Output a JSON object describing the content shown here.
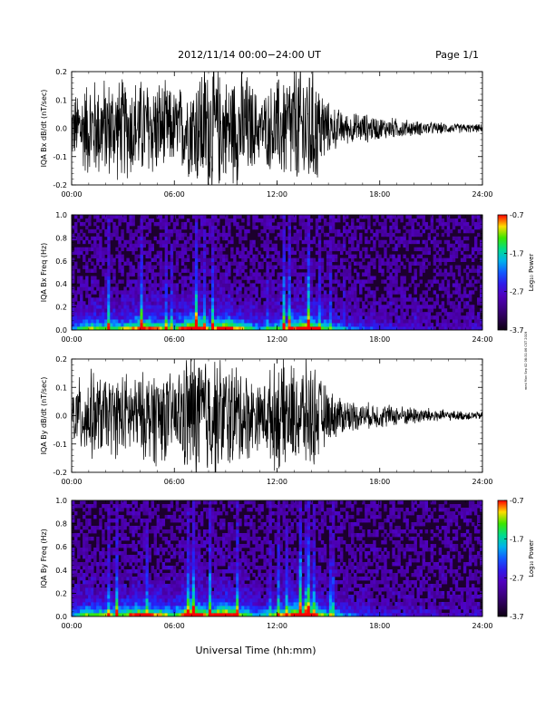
{
  "header": {
    "title": "2012/11/14  00:00−24:00 UT",
    "page": "Page 1/1"
  },
  "footer": {
    "xlabel": "Universal Time (hh:mm)",
    "side_stamp": "mml Mon Sep 02 08:31:06 CST 2019"
  },
  "chart_data": [
    {
      "type": "line",
      "ylabel": "IQA Bx dB/dt (nT/sec)",
      "ylim": [
        -0.2,
        0.2
      ],
      "yticks": [
        "-0.2",
        "-0.1",
        "0.0",
        "0.1",
        "0.2"
      ],
      "xlim": [
        0,
        24
      ],
      "xticks": [
        "00:00",
        "06:00",
        "12:00",
        "18:00",
        "24:00"
      ],
      "x_unit": "hours UT",
      "envelope": {
        "x": [
          0,
          1,
          2,
          3,
          4,
          5,
          6,
          7,
          8,
          9,
          10,
          11,
          12,
          13,
          14,
          15,
          16,
          17,
          18,
          19,
          20,
          21,
          22,
          23,
          24
        ],
        "amplitude": [
          0.12,
          0.2,
          0.2,
          0.2,
          0.2,
          0.2,
          0.15,
          0.2,
          0.3,
          0.2,
          0.25,
          0.12,
          0.2,
          0.25,
          0.28,
          0.1,
          0.06,
          0.06,
          0.045,
          0.04,
          0.03,
          0.025,
          0.02,
          0.018,
          0.015
        ]
      }
    },
    {
      "type": "heatmap",
      "ylabel": "IQA Bx Freq (Hz)",
      "ylim": [
        0.0,
        1.0
      ],
      "yticks": [
        "0.0",
        "0.2",
        "0.4",
        "0.6",
        "0.8",
        "1.0"
      ],
      "xlim": [
        0,
        24
      ],
      "xticks": [
        "00:00",
        "06:00",
        "12:00",
        "18:00",
        "24:00"
      ],
      "colorbar": {
        "label": "Log₁₀ Power",
        "range": [
          -3.7,
          -0.7
        ],
        "ticks": [
          "-0.7",
          "-1.7",
          "-2.7",
          "-3.7"
        ]
      },
      "activity": {
        "x": [
          0,
          1,
          2,
          3,
          4,
          5,
          6,
          7,
          8,
          9,
          10,
          11,
          12,
          13,
          14,
          15,
          16,
          17,
          18,
          19,
          20,
          21,
          22,
          23,
          24
        ],
        "level": [
          0.3,
          0.6,
          0.55,
          0.55,
          0.8,
          0.7,
          0.5,
          1.0,
          0.6,
          0.9,
          0.6,
          0.35,
          0.5,
          0.8,
          0.85,
          0.45,
          0.3,
          0.25,
          0.2,
          0.15,
          0.12,
          0.1,
          0.08,
          0.08,
          0.08
        ]
      }
    },
    {
      "type": "line",
      "ylabel": "IQA By dB/dt (nT/sec)",
      "ylim": [
        -0.2,
        0.2
      ],
      "yticks": [
        "-0.2",
        "-0.1",
        "0.0",
        "0.1",
        "0.2"
      ],
      "xlim": [
        0,
        24
      ],
      "xticks": [
        "00:00",
        "06:00",
        "12:00",
        "18:00",
        "24:00"
      ],
      "x_unit": "hours UT",
      "envelope": {
        "x": [
          0,
          1,
          2,
          3,
          4,
          5,
          6,
          7,
          8,
          9,
          10,
          11,
          12,
          13,
          14,
          15,
          16,
          17,
          18,
          19,
          20,
          21,
          22,
          23,
          24
        ],
        "amplitude": [
          0.12,
          0.18,
          0.15,
          0.17,
          0.16,
          0.2,
          0.15,
          0.28,
          0.25,
          0.22,
          0.2,
          0.12,
          0.22,
          0.2,
          0.22,
          0.1,
          0.07,
          0.05,
          0.05,
          0.04,
          0.035,
          0.03,
          0.02,
          0.018,
          0.015
        ]
      }
    },
    {
      "type": "heatmap",
      "ylabel": "IQA By Freq (Hz)",
      "ylim": [
        0.0,
        1.0
      ],
      "yticks": [
        "0.0",
        "0.2",
        "0.4",
        "0.6",
        "0.8",
        "1.0"
      ],
      "xlim": [
        0,
        24
      ],
      "xticks": [
        "00:00",
        "06:00",
        "12:00",
        "18:00",
        "24:00"
      ],
      "colorbar": {
        "label": "Log₁₀ Power",
        "range": [
          -3.7,
          -0.7
        ],
        "ticks": [
          "-0.7",
          "-1.7",
          "-2.7",
          "-3.7"
        ]
      },
      "activity": {
        "x": [
          0,
          1,
          2,
          3,
          4,
          5,
          6,
          7,
          8,
          9,
          10,
          11,
          12,
          13,
          14,
          15,
          16,
          17,
          18,
          19,
          20,
          21,
          22,
          23,
          24
        ],
        "level": [
          0.35,
          0.6,
          0.55,
          0.6,
          0.8,
          0.7,
          0.5,
          1.0,
          0.65,
          0.95,
          0.6,
          0.35,
          0.55,
          0.85,
          0.85,
          0.45,
          0.3,
          0.25,
          0.2,
          0.15,
          0.12,
          0.1,
          0.08,
          0.08,
          0.08
        ]
      }
    }
  ]
}
